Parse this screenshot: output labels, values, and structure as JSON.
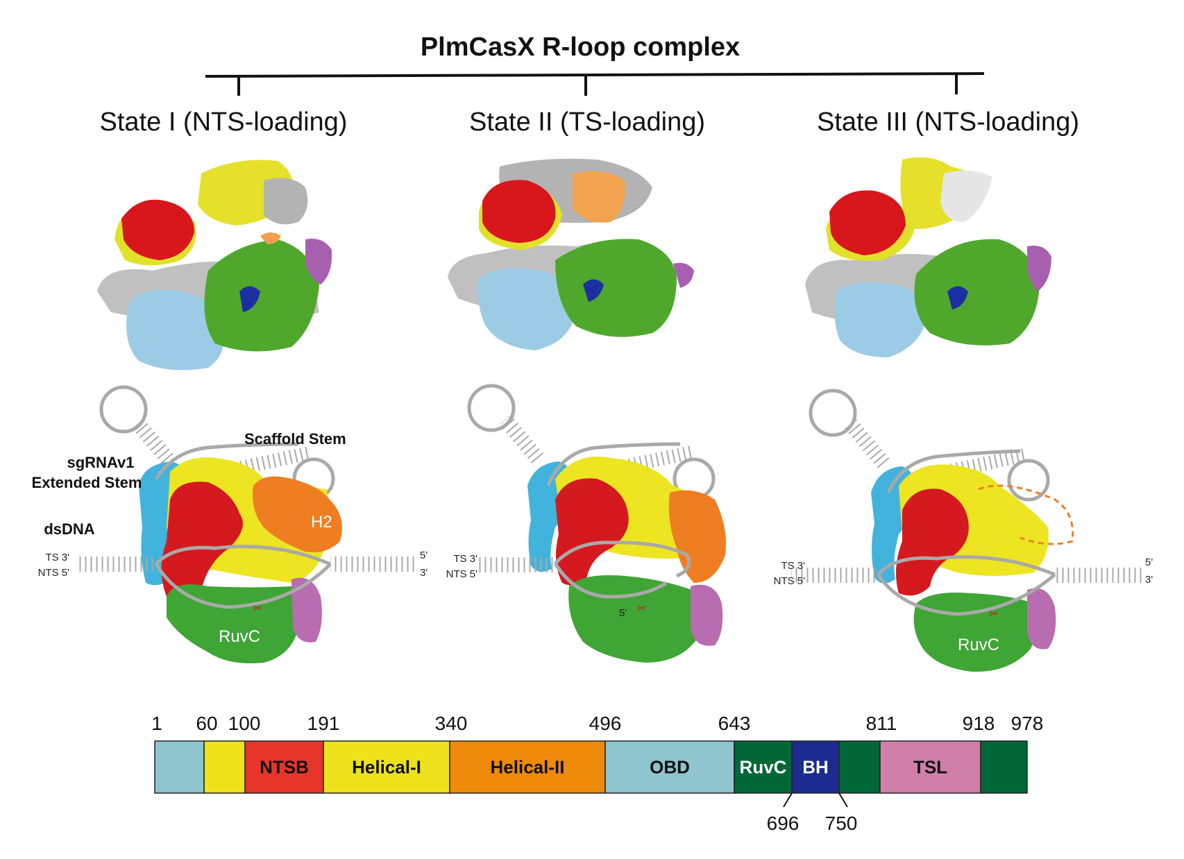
{
  "title": "PlmCasX R-loop complex",
  "states": [
    {
      "label": "State I (NTS-loading)"
    },
    {
      "label": "State II (TS-loading)"
    },
    {
      "label": "State III (NTS-loading)"
    }
  ],
  "cartoon_labels": {
    "scaffold_stem": "Scaffold Stem",
    "sgrna_line1": "sgRNAv1",
    "sgrna_line2": "Extended Stem",
    "dsdna": "dsDNA",
    "h2": "H2",
    "ruvc": "RuvC",
    "ts3": "TS 3'",
    "nts5": "NTS 5'",
    "five_prime": "5'",
    "three_prime": "3'"
  },
  "colors": {
    "red": "#d4191f",
    "yellow": "#ede522",
    "orange": "#ef7d22",
    "green": "#3fa535",
    "lightblue": "#8ecbe6",
    "cyan": "#42b3dc",
    "purple": "#b76db0",
    "gray": "#b3b3b3",
    "darkblue": "#1c2fa0"
  },
  "domain_map": {
    "start_labels": [
      "1",
      "60",
      "100",
      "191",
      "340",
      "496",
      "643",
      "811",
      "918",
      "978"
    ],
    "bottom_labels": [
      "696",
      "750"
    ],
    "domains": [
      {
        "start": 1,
        "end": 60,
        "label": "",
        "color": "#8ec5cf",
        "text_color": "#111111"
      },
      {
        "start": 60,
        "end": 100,
        "label": "",
        "color": "#ede21b",
        "text_color": "#111111"
      },
      {
        "start": 100,
        "end": 191,
        "label": "NTSB",
        "color": "#e7352a",
        "text_color": "#111111"
      },
      {
        "start": 191,
        "end": 340,
        "label": "Helical-I",
        "color": "#ede21b",
        "text_color": "#111111"
      },
      {
        "start": 340,
        "end": 496,
        "label": "Helical-II",
        "color": "#ef8a0b",
        "text_color": "#111111"
      },
      {
        "start": 496,
        "end": 643,
        "label": "OBD",
        "color": "#8ec5cf",
        "text_color": "#111111"
      },
      {
        "start": 643,
        "end": 696,
        "label": "RuvC",
        "color": "#006837",
        "text_color": "#ffffff"
      },
      {
        "start": 696,
        "end": 750,
        "label": "BH",
        "color": "#1b2b8f",
        "text_color": "#ffffff"
      },
      {
        "start": 750,
        "end": 811,
        "label": "",
        "color": "#006837",
        "text_color": "#ffffff"
      },
      {
        "start": 811,
        "end": 918,
        "label": "TSL",
        "color": "#d080a8",
        "text_color": "#111111"
      },
      {
        "start": 918,
        "end": 978,
        "label": "",
        "color": "#006837",
        "text_color": "#ffffff"
      }
    ]
  }
}
